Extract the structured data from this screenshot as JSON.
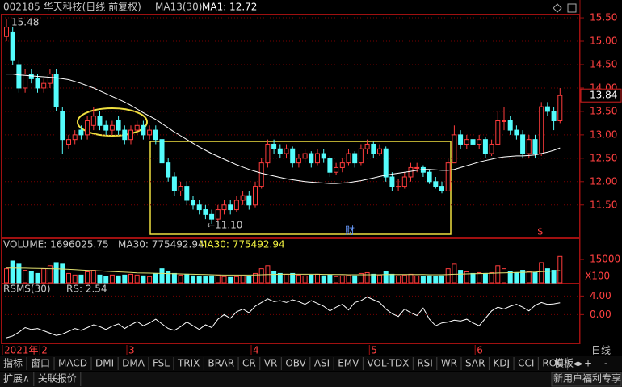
{
  "header": {
    "title": "002185 华天科技(日线 前复权)",
    "indicator": "MA13(30)",
    "ma_label": "MA1: 12.72"
  },
  "chart_data": [
    {
      "type": "candlestick",
      "candles": [
        [
          15.1,
          15.48,
          15.0,
          15.3
        ],
        [
          15.2,
          15.3,
          14.5,
          14.6
        ],
        [
          14.5,
          14.6,
          13.9,
          14.0
        ],
        [
          14.0,
          14.4,
          13.9,
          14.3
        ],
        [
          14.3,
          14.4,
          14.1,
          14.2
        ],
        [
          14.2,
          14.3,
          13.9,
          14.0
        ],
        [
          14.0,
          14.2,
          13.9,
          14.1
        ],
        [
          14.1,
          14.4,
          14.0,
          14.3
        ],
        [
          14.3,
          14.4,
          13.5,
          13.6
        ],
        [
          13.5,
          13.6,
          12.6,
          12.9
        ],
        [
          12.8,
          13.0,
          12.7,
          12.9
        ],
        [
          12.9,
          13.1,
          12.8,
          13.0
        ],
        [
          13.1,
          13.2,
          12.9,
          13.0
        ],
        [
          13.0,
          13.4,
          12.9,
          13.3
        ],
        [
          13.2,
          13.6,
          13.1,
          13.4
        ],
        [
          13.4,
          13.5,
          13.1,
          13.2
        ],
        [
          13.2,
          13.3,
          13.0,
          13.1
        ],
        [
          13.1,
          13.3,
          13.0,
          13.2
        ],
        [
          13.3,
          13.4,
          13.0,
          13.1
        ],
        [
          13.1,
          13.2,
          12.8,
          12.9
        ],
        [
          12.9,
          13.2,
          12.8,
          13.1
        ],
        [
          13.1,
          13.3,
          13.0,
          13.2
        ],
        [
          13.2,
          13.3,
          12.9,
          13.0
        ],
        [
          13.0,
          13.2,
          12.9,
          13.1
        ],
        [
          13.1,
          13.2,
          12.8,
          12.9
        ],
        [
          12.9,
          13.0,
          12.3,
          12.4
        ],
        [
          12.4,
          12.5,
          12.0,
          12.1
        ],
        [
          12.1,
          12.2,
          11.7,
          11.8
        ],
        [
          11.8,
          12.0,
          11.7,
          11.9
        ],
        [
          11.9,
          12.0,
          11.5,
          11.6
        ],
        [
          11.6,
          11.7,
          11.4,
          11.5
        ],
        [
          11.5,
          11.6,
          11.3,
          11.4
        ],
        [
          11.4,
          11.5,
          11.2,
          11.3
        ],
        [
          11.3,
          11.4,
          11.1,
          11.2
        ],
        [
          11.2,
          11.5,
          11.15,
          11.4
        ],
        [
          11.4,
          11.6,
          11.3,
          11.5
        ],
        [
          11.5,
          11.6,
          11.3,
          11.4
        ],
        [
          11.4,
          11.7,
          11.35,
          11.6
        ],
        [
          11.6,
          11.8,
          11.5,
          11.7
        ],
        [
          11.7,
          11.8,
          11.4,
          11.5
        ],
        [
          11.5,
          12.0,
          11.45,
          11.9
        ],
        [
          11.9,
          12.5,
          11.85,
          12.4
        ],
        [
          12.4,
          12.9,
          12.3,
          12.8
        ],
        [
          12.8,
          12.9,
          12.6,
          12.7
        ],
        [
          12.7,
          12.8,
          12.5,
          12.6
        ],
        [
          12.6,
          12.8,
          12.5,
          12.7
        ],
        [
          12.7,
          12.75,
          12.3,
          12.4
        ],
        [
          12.4,
          12.6,
          12.3,
          12.5
        ],
        [
          12.5,
          12.7,
          12.4,
          12.6
        ],
        [
          12.6,
          12.65,
          12.3,
          12.4
        ],
        [
          12.4,
          12.7,
          12.35,
          12.6
        ],
        [
          12.6,
          12.7,
          12.4,
          12.5
        ],
        [
          12.5,
          12.55,
          12.1,
          12.2
        ],
        [
          12.2,
          12.4,
          12.15,
          12.3
        ],
        [
          12.3,
          12.5,
          12.2,
          12.4
        ],
        [
          12.4,
          12.7,
          12.35,
          12.6
        ],
        [
          12.6,
          12.65,
          12.3,
          12.4
        ],
        [
          12.4,
          12.8,
          12.35,
          12.7
        ],
        [
          12.7,
          12.9,
          12.6,
          12.8
        ],
        [
          12.8,
          12.85,
          12.5,
          12.6
        ],
        [
          12.6,
          12.8,
          12.55,
          12.7
        ],
        [
          12.7,
          12.75,
          12.0,
          12.1
        ],
        [
          12.1,
          12.2,
          11.8,
          11.9
        ],
        [
          11.9,
          12.05,
          11.8,
          11.9
        ],
        [
          11.9,
          12.2,
          11.85,
          12.1
        ],
        [
          12.1,
          12.4,
          12.0,
          12.3
        ],
        [
          12.3,
          12.4,
          12.2,
          12.3
        ],
        [
          12.3,
          12.35,
          12.1,
          12.2
        ],
        [
          12.2,
          12.25,
          11.95,
          12.0
        ],
        [
          12.0,
          12.1,
          11.85,
          11.9
        ],
        [
          11.9,
          12.0,
          11.75,
          11.8
        ],
        [
          11.8,
          12.5,
          11.8,
          12.4
        ],
        [
          12.4,
          13.2,
          12.4,
          13.0
        ],
        [
          13.0,
          13.1,
          12.7,
          12.8
        ],
        [
          12.8,
          13.0,
          12.7,
          12.9
        ],
        [
          12.9,
          13.0,
          12.7,
          12.8
        ],
        [
          12.8,
          13.0,
          12.7,
          12.9
        ],
        [
          12.9,
          12.95,
          12.5,
          12.6
        ],
        [
          12.6,
          12.9,
          12.55,
          12.8
        ],
        [
          12.8,
          13.5,
          12.8,
          13.3
        ],
        [
          13.3,
          13.6,
          13.1,
          13.3
        ],
        [
          13.3,
          13.4,
          13.0,
          13.1
        ],
        [
          13.1,
          13.2,
          12.9,
          13.0
        ],
        [
          13.0,
          13.1,
          12.5,
          12.6
        ],
        [
          12.6,
          13.0,
          12.5,
          12.9
        ],
        [
          12.9,
          13.0,
          12.5,
          12.6
        ],
        [
          12.6,
          13.7,
          12.55,
          13.6
        ],
        [
          13.6,
          13.7,
          13.4,
          13.5
        ],
        [
          13.5,
          13.6,
          13.1,
          13.3
        ],
        [
          13.3,
          14.0,
          13.25,
          13.84
        ]
      ],
      "ma": {
        "color": "#ffffff",
        "values": [
          14.3,
          14.3,
          14.28,
          14.27,
          14.26,
          14.25,
          14.24,
          14.23,
          14.22,
          14.2,
          14.18,
          14.14,
          14.1,
          14.05,
          14.0,
          13.94,
          13.88,
          13.82,
          13.76,
          13.7,
          13.63,
          13.55,
          13.47,
          13.4,
          13.33,
          13.24,
          13.15,
          13.06,
          12.98,
          12.9,
          12.82,
          12.74,
          12.67,
          12.6,
          12.54,
          12.48,
          12.42,
          12.36,
          12.31,
          12.26,
          12.22,
          12.18,
          12.15,
          12.12,
          12.09,
          12.06,
          12.04,
          12.02,
          12.0,
          11.99,
          11.98,
          11.97,
          11.96,
          11.96,
          11.97,
          11.98,
          12.0,
          12.02,
          12.05,
          12.08,
          12.11,
          12.14,
          12.16,
          12.18,
          12.2,
          12.22,
          12.24,
          12.26,
          12.26,
          12.25,
          12.24,
          12.24,
          12.26,
          12.3,
          12.34,
          12.38,
          12.42,
          12.45,
          12.48,
          12.51,
          12.53,
          12.54,
          12.55,
          12.55,
          12.56,
          12.57,
          12.6,
          12.63,
          12.67,
          12.72
        ]
      },
      "ylim": [
        10.84,
        15.57
      ],
      "yticks": [
        {
          "value": 15.5,
          "label": "15.50"
        },
        {
          "value": 15,
          "label": "15.00"
        },
        {
          "value": 14.5,
          "label": "14.50"
        },
        {
          "value": 14,
          "label": "14.00"
        },
        {
          "value": 13.5,
          "label": "13.50"
        },
        {
          "value": 13,
          "label": "13.00"
        },
        {
          "value": 12.5,
          "label": "12.50"
        },
        {
          "value": 12,
          "label": "12.00"
        },
        {
          "value": 11.5,
          "label": "11.50"
        }
      ],
      "grid": true,
      "up_color": "#ff3c3c",
      "down_color": "#54fcfc",
      "categories": [
        "2021年",
        null,
        null,
        null,
        null,
        null,
        "2",
        null,
        null,
        null,
        null,
        null,
        null,
        null,
        null,
        null,
        null,
        null,
        null,
        null,
        "3",
        null,
        null,
        null,
        null,
        null,
        null,
        null,
        null,
        null,
        null,
        null,
        null,
        null,
        null,
        null,
        null,
        null,
        null,
        null,
        "4",
        null,
        null,
        null,
        null,
        null,
        null,
        null,
        null,
        null,
        null,
        null,
        null,
        null,
        null,
        null,
        null,
        null,
        null,
        "5",
        null,
        null,
        null,
        null,
        null,
        null,
        null,
        null,
        null,
        null,
        null,
        null,
        null,
        null,
        null,
        null,
        "6",
        null,
        null,
        null,
        null,
        null,
        null,
        null,
        null,
        null,
        null,
        null,
        null,
        null
      ],
      "annotations": {
        "low": "←11.10",
        "markers": [
          "财",
          "$"
        ]
      }
    },
    {
      "type": "bar",
      "title": "VOLUME: 1696025.75",
      "ma_label": "MA30: 775492.94",
      "ma_label_highlight": "MA30: 775492.94",
      "values": [
        9000,
        14000,
        12000,
        8000,
        7000,
        6000,
        9000,
        11000,
        13000,
        12000,
        6000,
        5000,
        5000,
        7000,
        8000,
        5000,
        4000,
        5000,
        4500,
        5000,
        5500,
        5000,
        4500,
        4000,
        6000,
        9000,
        7000,
        6000,
        5000,
        5500,
        4500,
        4000,
        4000,
        4500,
        5000,
        4000,
        3500,
        4000,
        4500,
        4000,
        6000,
        9000,
        11000,
        7000,
        6000,
        5500,
        6000,
        5000,
        4500,
        5000,
        5500,
        4500,
        5000,
        4000,
        4500,
        5000,
        4500,
        6000,
        6500,
        5500,
        5000,
        7000,
        5500,
        4500,
        5000,
        5500,
        4500,
        4000,
        4500,
        4000,
        4500,
        9000,
        12000,
        8000,
        7000,
        6000,
        6500,
        6000,
        6500,
        11000,
        9000,
        7000,
        6500,
        8000,
        7000,
        6500,
        13000,
        9000,
        8000,
        16960
      ],
      "ma": {
        "color": "#e0e070",
        "values": [
          9500,
          9500,
          9400,
          9400,
          9300,
          9200,
          9100,
          9000,
          8900,
          8800,
          8600,
          8400,
          8200,
          8000,
          7800,
          7600,
          7400,
          7200,
          7000,
          6800,
          6600,
          6400,
          6300,
          6200,
          6100,
          6000,
          5900,
          5800,
          5700,
          5600,
          5500,
          5400,
          5300,
          5200,
          5100,
          5000,
          5000,
          5000,
          5000,
          5000,
          5100,
          5200,
          5300,
          5400,
          5500,
          5500,
          5500,
          5500,
          5500,
          5500,
          5500,
          5400,
          5400,
          5300,
          5300,
          5200,
          5200,
          5200,
          5200,
          5200,
          5200,
          5300,
          5300,
          5300,
          5300,
          5300,
          5300,
          5300,
          5200,
          5200,
          5200,
          5300,
          5500,
          5600,
          5700,
          5800,
          5900,
          6000,
          6100,
          6300,
          6400,
          6500,
          6600,
          6700,
          6800,
          6900,
          7100,
          7300,
          7500,
          7754.93
        ]
      },
      "ylim": [
        0,
        28000
      ],
      "yticks": [
        15000
      ],
      "unit": "X100"
    },
    {
      "type": "line",
      "title": "RSMS(30)",
      "value_label": "RS: 2.54",
      "values": [
        -5.0,
        -4.6,
        -3.8,
        -2.8,
        -3.2,
        -3.0,
        -3.5,
        -4.0,
        -4.5,
        -4.2,
        -3.6,
        -3.0,
        -3.4,
        -2.8,
        -2.2,
        -2.6,
        -3.2,
        -2.5,
        -2.0,
        -3.0,
        -2.2,
        -1.5,
        -2.4,
        -1.8,
        -1.0,
        -2.0,
        -3.0,
        -3.4,
        -2.6,
        -1.6,
        -2.4,
        -3.2,
        -2.2,
        -2.8,
        -1.0,
        0.0,
        -0.8,
        0.6,
        1.2,
        0.4,
        1.8,
        2.6,
        3.4,
        2.8,
        3.0,
        2.6,
        3.2,
        2.8,
        2.2,
        3.0,
        2.4,
        1.8,
        0.8,
        1.6,
        2.2,
        1.0,
        2.6,
        3.0,
        3.8,
        3.2,
        2.6,
        1.2,
        0.2,
        -0.4,
        1.2,
        0.4,
        -0.2,
        1.4,
        -1.0,
        -2.4,
        -1.8,
        -1.6,
        -1.2,
        -1.4,
        -1.0,
        -1.8,
        -2.4,
        -0.8,
        0.8,
        1.6,
        1.2,
        1.8,
        2.2,
        1.6,
        0.8,
        2.0,
        2.6,
        2.2,
        2.3,
        2.54
      ],
      "color": "#ffffff",
      "ylim": [
        -6.2,
        6.5
      ],
      "yticks": [
        {
          "value": 4,
          "label": "4.00"
        },
        {
          "value": 0,
          "label": "0.00"
        }
      ],
      "grid": true
    }
  ],
  "period": "日线",
  "tabs": [
    "指标",
    "窗口",
    "MACD",
    "DMI",
    "DMA",
    "FSL",
    "TRIX",
    "BRAR",
    "CR",
    "VR",
    "OBV",
    "ASI",
    "EMV",
    "VOL-TDX",
    "RSI",
    "WR",
    "SAR",
    "KDJ",
    "CCI",
    "ROC"
  ],
  "tab_right": [
    "模板",
    "+",
    "-"
  ],
  "footer": {
    "left": [
      "扩展∧",
      "关联报价"
    ],
    "right": "新用户福利专享"
  }
}
